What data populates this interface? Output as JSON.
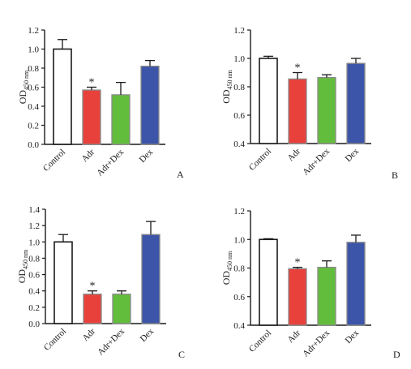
{
  "chart_data": [
    {
      "type": "bar",
      "panel": "A",
      "categories": [
        "Control",
        "Adr",
        "Adr+Dex",
        "Dex"
      ],
      "values": [
        1.0,
        0.57,
        0.52,
        0.82
      ],
      "errors": [
        0.1,
        0.03,
        0.13,
        0.06
      ],
      "significance": [
        "",
        "*",
        "",
        ""
      ],
      "ylabel": {
        "main": "OD",
        "sub": "450 nm"
      },
      "ylim": [
        0.0,
        1.2
      ],
      "yticks": [
        "0.0",
        "0.2",
        "0.4",
        "0.6",
        "0.8",
        "1.0",
        "1.2"
      ],
      "colors": [
        "#ffffff",
        "#e8413c",
        "#63bd3c",
        "#3c55a8"
      ],
      "grid": false,
      "legend": "none"
    },
    {
      "type": "bar",
      "panel": "B",
      "categories": [
        "Control",
        "Adr",
        "Adr+Dex",
        "Dex"
      ],
      "values": [
        1.0,
        0.855,
        0.865,
        0.965
      ],
      "errors": [
        0.015,
        0.045,
        0.02,
        0.035
      ],
      "significance": [
        "",
        "*",
        "",
        ""
      ],
      "ylabel": {
        "main": "OD",
        "sub": "450 nm"
      },
      "ylim": [
        0.4,
        1.2
      ],
      "yticks": [
        "0.4",
        "0.6",
        "0.8",
        "1.0",
        "1.2"
      ],
      "colors": [
        "#ffffff",
        "#e8413c",
        "#63bd3c",
        "#3c55a8"
      ],
      "grid": false,
      "legend": "none"
    },
    {
      "type": "bar",
      "panel": "C",
      "categories": [
        "Control",
        "Adr",
        "Adr+Dex",
        "Dex"
      ],
      "values": [
        1.0,
        0.36,
        0.36,
        1.09
      ],
      "errors": [
        0.09,
        0.04,
        0.04,
        0.16
      ],
      "significance": [
        "",
        "*",
        "",
        ""
      ],
      "ylabel": {
        "main": "OD",
        "sub": "450 nm"
      },
      "ylim": [
        0.0,
        1.4
      ],
      "yticks": [
        "0.0",
        "0.2",
        "0.4",
        "0.6",
        "0.8",
        "1.0",
        "1.2",
        "1.4"
      ],
      "colors": [
        "#ffffff",
        "#e8413c",
        "#63bd3c",
        "#3c55a8"
      ],
      "grid": false,
      "legend": "none"
    },
    {
      "type": "bar",
      "panel": "D",
      "categories": [
        "Control",
        "Adr",
        "Adr+Dex",
        "Dex"
      ],
      "values": [
        1.0,
        0.795,
        0.805,
        0.98
      ],
      "errors": [
        0.005,
        0.01,
        0.045,
        0.05
      ],
      "significance": [
        "",
        "*",
        "",
        ""
      ],
      "ylabel": {
        "main": "OD",
        "sub": "450 nm"
      },
      "ylim": [
        0.4,
        1.2
      ],
      "yticks": [
        "0.4",
        "0.6",
        "0.8",
        "1.0",
        "1.2"
      ],
      "colors": [
        "#ffffff",
        "#e8413c",
        "#63bd3c",
        "#3c55a8"
      ],
      "grid": false,
      "legend": "none"
    }
  ]
}
